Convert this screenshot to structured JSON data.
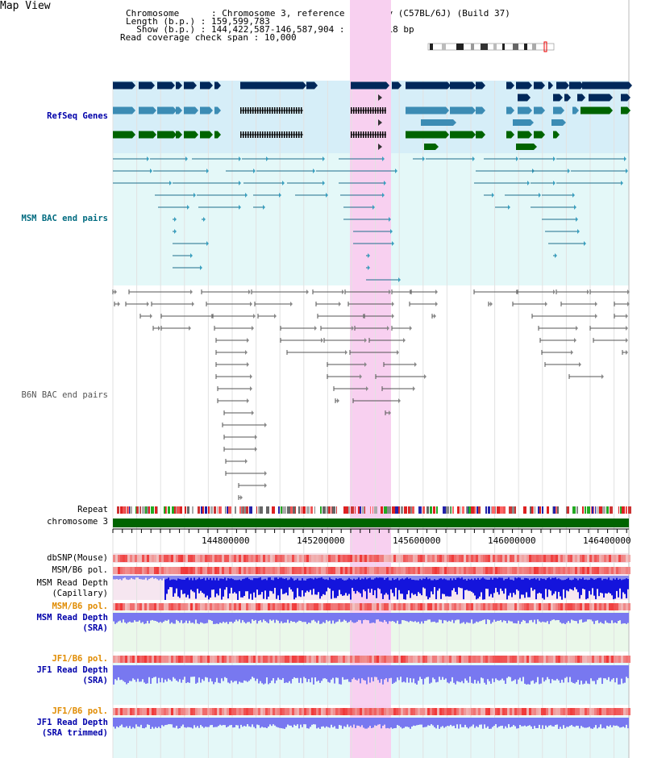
{
  "title": "Map View",
  "info": {
    "chromosome_key": "Chromosome",
    "chromosome_value": "Chromosome 3, reference assembly (C57BL/6J) (Build 37)",
    "length_key": "Length (b.p.)",
    "length_value": "159,599,783",
    "show_key": "Show (b.p.)",
    "show_value": "144,422,587-146,587,904 : 2,165,318 bp",
    "span_key": "Read coverage check span",
    "span_value": "10,000"
  },
  "tracks": {
    "refseq": "RefSeq Genes",
    "msm_bac": "MSM BAC end pairs",
    "b6n_bac": "B6N BAC end pairs",
    "repeat": "Repeat",
    "chromosome": "chromosome 3",
    "dbsnp": "dbSNP(Mouse)",
    "msm_pol_1": "MSM/B6 pol.",
    "msm_depth_cap_1": "MSM Read Depth",
    "msm_depth_cap_2": "(Capillary)",
    "msm_pol_2": "MSM/B6 pol.",
    "msm_depth_sra_1": "MSM Read Depth",
    "msm_depth_sra_2": "(SRA)",
    "jf1_pol_1": "JF1/B6 pol.",
    "jf1_depth_sra_1": "JF1 Read Depth",
    "jf1_depth_sra_2": "(SRA)",
    "jf1_pol_2": "JF1/B6 pol.",
    "jf1_depth_trim_1": "JF1 Read Depth",
    "jf1_depth_trim_2": "(SRA trimmed)"
  },
  "axis_positions": [
    "144800000",
    "145200000",
    "145600000",
    "146000000",
    "146400000"
  ],
  "colors": {
    "refseq_bg": "#d6eef8",
    "bac_bg": "#e4f8f8",
    "highlight": "#f8d0f0",
    "gene_dark": "#00285a",
    "gene_mid": "#3c8cb4",
    "gene_green": "#006400",
    "chromosome_bar": "#006400",
    "depth_capillary": "#1414dc",
    "depth_sra": "#7878f0"
  }
}
